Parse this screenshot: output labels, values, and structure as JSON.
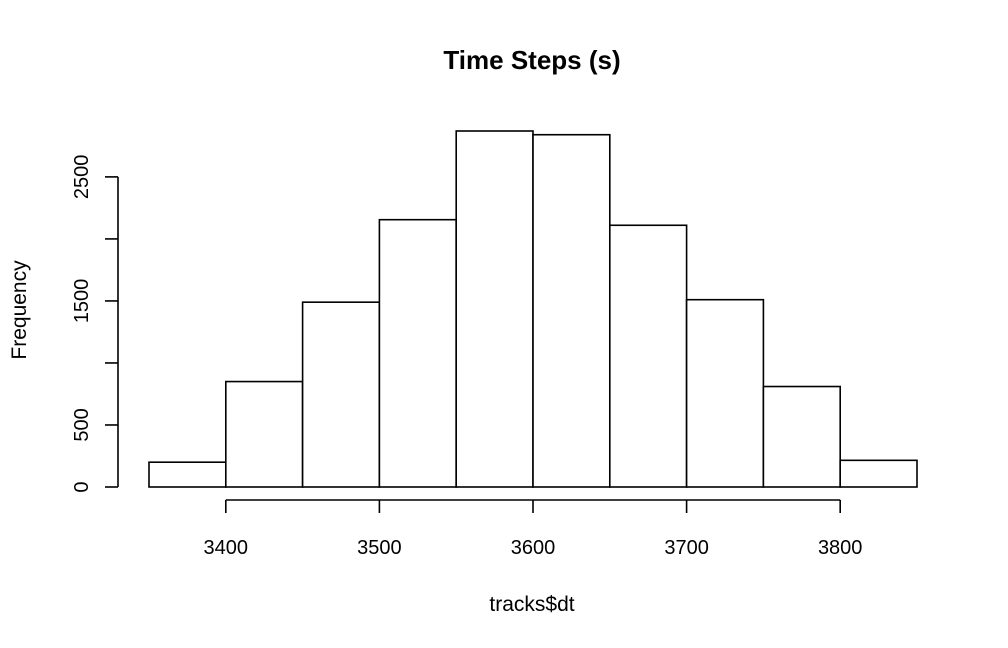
{
  "chart_data": {
    "type": "bar",
    "title": "Time Steps (s)",
    "xlabel": "tracks$dt",
    "ylabel": "Frequency",
    "bins": [
      {
        "x0": 3350,
        "x1": 3400,
        "count": 200
      },
      {
        "x0": 3400,
        "x1": 3450,
        "count": 850
      },
      {
        "x0": 3450,
        "x1": 3500,
        "count": 1490
      },
      {
        "x0": 3500,
        "x1": 3550,
        "count": 2155
      },
      {
        "x0": 3550,
        "x1": 3600,
        "count": 2870
      },
      {
        "x0": 3600,
        "x1": 3650,
        "count": 2840
      },
      {
        "x0": 3650,
        "x1": 3700,
        "count": 2110
      },
      {
        "x0": 3700,
        "x1": 3750,
        "count": 1510
      },
      {
        "x0": 3750,
        "x1": 3800,
        "count": 810
      },
      {
        "x0": 3800,
        "x1": 3850,
        "count": 215
      }
    ],
    "xlim": [
      3350,
      3850
    ],
    "ylim": [
      0,
      2870
    ],
    "xticks": [
      3400,
      3500,
      3600,
      3700,
      3800
    ],
    "xtick_labels": [
      "3400",
      "3500",
      "3600",
      "3700",
      "3800"
    ],
    "yticks": [
      0,
      500,
      1000,
      1500,
      2000,
      2500
    ],
    "ytick_labels": [
      "0",
      "500",
      "",
      "1500",
      "",
      "2500"
    ],
    "colors": {
      "bar_fill": "#ffffff",
      "bar_stroke": "#000000"
    }
  }
}
